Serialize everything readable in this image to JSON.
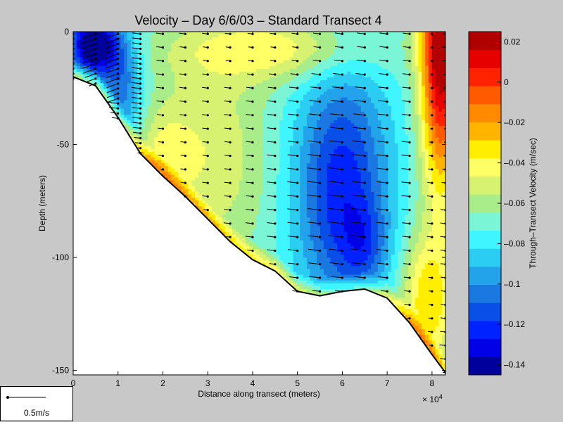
{
  "chart_data": {
    "type": "heatmap",
    "title": "Velocity – Day 6/6/03 – Standard Transect 4",
    "xlabel": "Distance along transect (meters)",
    "ylabel": "Depth (meters)",
    "x_multiplier": "× 10",
    "x_multiplier_exp": "4",
    "xlim": [
      0,
      8.3
    ],
    "ylim": [
      -152,
      0
    ],
    "x_ticks": [
      "0",
      "1",
      "2",
      "3",
      "4",
      "5",
      "6",
      "7",
      "8"
    ],
    "y_ticks": [
      {
        "value": 0,
        "label": "0"
      },
      {
        "value": -50,
        "label": "-50"
      },
      {
        "value": -100,
        "label": "-100"
      },
      {
        "value": -150,
        "label": "-150"
      }
    ],
    "colorbar": {
      "label": "Through–Transect Velocity (m/sec)",
      "range": [
        -0.145,
        0.025
      ],
      "ticks": [
        {
          "value": 0.02,
          "label": "0.02"
        },
        {
          "value": 0,
          "label": "0"
        },
        {
          "value": -0.02,
          "label": "–0.02"
        },
        {
          "value": -0.04,
          "label": "–0.04"
        },
        {
          "value": -0.06,
          "label": "–0.06"
        },
        {
          "value": -0.08,
          "label": "–0.08"
        },
        {
          "value": -0.1,
          "label": "–0.1"
        },
        {
          "value": -0.12,
          "label": "–0.12"
        },
        {
          "value": -0.14,
          "label": "–0.14"
        }
      ],
      "colors": [
        "#00009c",
        "#0000e6",
        "#0022ff",
        "#0a4ee8",
        "#1a78e0",
        "#23a3ea",
        "#2ccdf2",
        "#3ff5ff",
        "#7af5d6",
        "#a9ec8a",
        "#d7f271",
        "#ffff66",
        "#ffee00",
        "#ffb400",
        "#ff8a00",
        "#ff5a00",
        "#ff2200",
        "#e60000",
        "#b00000"
      ]
    },
    "bottom_profile": [
      {
        "x": 0,
        "depth": -20
      },
      {
        "x": 0.5,
        "depth": -24
      },
      {
        "x": 1.0,
        "depth": -38
      },
      {
        "x": 1.5,
        "depth": -54
      },
      {
        "x": 2.0,
        "depth": -64
      },
      {
        "x": 2.5,
        "depth": -73
      },
      {
        "x": 3.0,
        "depth": -83
      },
      {
        "x": 3.5,
        "depth": -93
      },
      {
        "x": 4.0,
        "depth": -101
      },
      {
        "x": 4.5,
        "depth": -106
      },
      {
        "x": 5.0,
        "depth": -115
      },
      {
        "x": 5.5,
        "depth": -117
      },
      {
        "x": 6.0,
        "depth": -115
      },
      {
        "x": 6.5,
        "depth": -114
      },
      {
        "x": 7.0,
        "depth": -118
      },
      {
        "x": 7.5,
        "depth": -129
      },
      {
        "x": 8.0,
        "depth": -143
      },
      {
        "x": 8.3,
        "depth": -151
      }
    ],
    "velocity_regions": [
      {
        "level": -0.06,
        "cells": [
          [
            0,
            0,
            2.4,
            0
          ],
          [
            0,
            -20,
            1.5,
            -54
          ]
        ]
      },
      {
        "level": -0.14,
        "core": {
          "x": [
            0,
            1.0
          ],
          "depth": [
            0,
            -12
          ]
        }
      },
      {
        "level": -0.11,
        "core": {
          "x": [
            5.1,
            7.0
          ],
          "depth": [
            -22,
            -110
          ]
        }
      },
      {
        "level": 0.02,
        "core": {
          "x": [
            7.8,
            8.3
          ],
          "depth": [
            0,
            -15
          ]
        }
      }
    ],
    "vector_columns_x": [
      0,
      0.5,
      1.0,
      1.5,
      2.0,
      2.5,
      3.0,
      3.5,
      4.0,
      4.5,
      5.0,
      5.5,
      6.0,
      6.5,
      7.0,
      7.5,
      8.0,
      8.3
    ],
    "vector_spacing_depth": 6,
    "scale_vector": "0.5m/s"
  }
}
